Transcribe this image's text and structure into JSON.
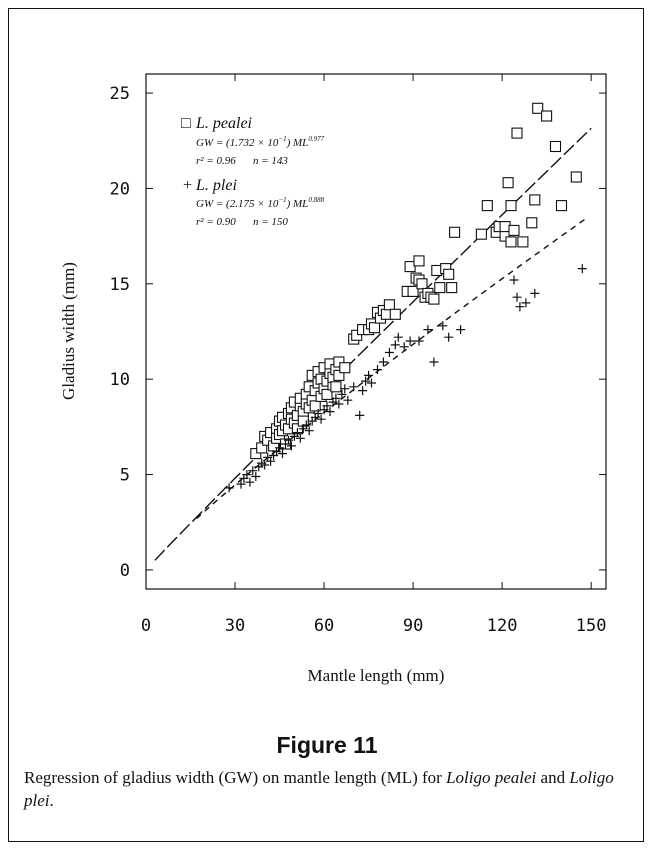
{
  "figure": {
    "title": "Figure 11",
    "caption_prefix": "Regression of gladius width (GW) on mantle length (ML) for ",
    "caption_species1": "Loligo pealei",
    "caption_and": " and ",
    "caption_species2": "Loligo plei",
    "caption_suffix": "."
  },
  "chart_data": {
    "type": "scatter",
    "xlabel": "Mantle length (mm)",
    "ylabel": "Gladius width (mm)",
    "xlim": [
      0,
      155
    ],
    "ylim": [
      -1,
      26
    ],
    "xticks": [
      0,
      30,
      60,
      90,
      120,
      150
    ],
    "yticks": [
      0,
      5,
      10,
      15,
      20,
      25
    ],
    "grid": false,
    "legend_position": "top-left",
    "series": [
      {
        "name": "L. pealei",
        "symbol": "square",
        "legend_symbol": "□",
        "equation_text": "GW = (1.732 × 10",
        "equation_exp1": "−1",
        "equation_mid": ") ML",
        "equation_exp2": "0.977",
        "r2_text": "r² = 0.96",
        "n_text": "n = 143",
        "fit": {
          "a": 0.1732,
          "b": 0.977,
          "x_range": [
            3,
            150
          ],
          "style": "long-dash"
        },
        "points": [
          [
            37,
            6.1
          ],
          [
            39,
            6.4
          ],
          [
            40,
            7.0
          ],
          [
            41,
            6.8
          ],
          [
            42,
            7.2
          ],
          [
            43,
            6.5
          ],
          [
            44,
            7.4
          ],
          [
            44,
            6.9
          ],
          [
            45,
            7.8
          ],
          [
            45,
            7.1
          ],
          [
            46,
            7.3
          ],
          [
            46,
            8.0
          ],
          [
            47,
            7.6
          ],
          [
            47,
            6.6
          ],
          [
            48,
            8.2
          ],
          [
            48,
            7.4
          ],
          [
            49,
            7.9
          ],
          [
            49,
            8.5
          ],
          [
            50,
            7.7
          ],
          [
            50,
            8.8
          ],
          [
            51,
            8.1
          ],
          [
            51,
            7.4
          ],
          [
            52,
            8.6
          ],
          [
            52,
            9.0
          ],
          [
            53,
            8.3
          ],
          [
            53,
            7.8
          ],
          [
            54,
            9.2
          ],
          [
            54,
            8.7
          ],
          [
            55,
            8.5
          ],
          [
            55,
            9.6
          ],
          [
            56,
            8.9
          ],
          [
            56,
            10.2
          ],
          [
            57,
            9.4
          ],
          [
            57,
            8.6
          ],
          [
            58,
            9.8
          ],
          [
            58,
            10.4
          ],
          [
            59,
            9.1
          ],
          [
            59,
            10.0
          ],
          [
            60,
            9.5
          ],
          [
            60,
            10.6
          ],
          [
            61,
            9.9
          ],
          [
            61,
            9.2
          ],
          [
            62,
            10.3
          ],
          [
            62,
            10.8
          ],
          [
            63,
            9.7
          ],
          [
            63,
            10.1
          ],
          [
            64,
            10.5
          ],
          [
            64,
            9.6
          ],
          [
            65,
            10.9
          ],
          [
            65,
            10.2
          ],
          [
            67,
            10.6
          ],
          [
            70,
            12.1
          ],
          [
            71,
            12.3
          ],
          [
            73,
            12.6
          ],
          [
            75,
            12.6
          ],
          [
            76,
            12.9
          ],
          [
            77,
            12.7
          ],
          [
            78,
            13.5
          ],
          [
            79,
            13.2
          ],
          [
            80,
            13.6
          ],
          [
            81,
            13.4
          ],
          [
            82,
            13.9
          ],
          [
            84,
            13.4
          ],
          [
            88,
            14.6
          ],
          [
            89,
            15.9
          ],
          [
            90,
            14.6
          ],
          [
            91,
            15.3
          ],
          [
            92,
            16.2
          ],
          [
            92,
            15.2
          ],
          [
            93,
            15.0
          ],
          [
            94,
            14.3
          ],
          [
            95,
            14.5
          ],
          [
            96,
            14.3
          ],
          [
            97,
            14.2
          ],
          [
            98,
            15.7
          ],
          [
            99,
            14.8
          ],
          [
            101,
            15.8
          ],
          [
            102,
            15.5
          ],
          [
            103,
            14.8
          ],
          [
            104,
            17.7
          ],
          [
            113,
            17.6
          ],
          [
            115,
            19.1
          ],
          [
            118,
            17.7
          ],
          [
            119,
            18.0
          ],
          [
            121,
            17.5
          ],
          [
            121,
            18.0
          ],
          [
            122,
            20.3
          ],
          [
            123,
            19.1
          ],
          [
            123,
            17.2
          ],
          [
            124,
            17.8
          ],
          [
            125,
            22.9
          ],
          [
            127,
            17.2
          ],
          [
            130,
            18.2
          ],
          [
            131,
            19.4
          ],
          [
            132,
            24.2
          ],
          [
            135,
            23.8
          ],
          [
            138,
            22.2
          ],
          [
            140,
            19.1
          ],
          [
            145,
            20.6
          ]
        ]
      },
      {
        "name": "L. plei",
        "symbol": "plus",
        "legend_symbol": "+",
        "equation_text": "GW = (2.175 × 10",
        "equation_exp1": "−1",
        "equation_mid": ") ML",
        "equation_exp2": "0.888",
        "r2_text": "r² = 0.90",
        "n_text": "n = 150",
        "fit": {
          "a": 0.2175,
          "b": 0.888,
          "x_range": [
            17,
            148
          ],
          "style": "short-dash"
        },
        "points": [
          [
            28,
            4.3
          ],
          [
            32,
            4.5
          ],
          [
            33,
            4.8
          ],
          [
            34,
            5.0
          ],
          [
            35,
            4.6
          ],
          [
            36,
            5.2
          ],
          [
            37,
            4.9
          ],
          [
            38,
            5.4
          ],
          [
            39,
            5.6
          ],
          [
            40,
            5.5
          ],
          [
            41,
            5.9
          ],
          [
            42,
            5.7
          ],
          [
            43,
            6.0
          ],
          [
            44,
            6.2
          ],
          [
            45,
            6.4
          ],
          [
            46,
            6.1
          ],
          [
            47,
            6.6
          ],
          [
            48,
            6.8
          ],
          [
            49,
            6.5
          ],
          [
            50,
            7.0
          ],
          [
            51,
            7.2
          ],
          [
            52,
            6.9
          ],
          [
            53,
            7.4
          ],
          [
            54,
            7.6
          ],
          [
            55,
            7.3
          ],
          [
            56,
            7.8
          ],
          [
            57,
            8.0
          ],
          [
            58,
            8.2
          ],
          [
            59,
            7.9
          ],
          [
            60,
            8.4
          ],
          [
            61,
            8.6
          ],
          [
            62,
            8.3
          ],
          [
            63,
            8.8
          ],
          [
            64,
            9.0
          ],
          [
            65,
            8.7
          ],
          [
            66,
            9.2
          ],
          [
            67,
            9.5
          ],
          [
            68,
            8.9
          ],
          [
            70,
            9.6
          ],
          [
            72,
            8.1
          ],
          [
            73,
            9.4
          ],
          [
            74,
            9.9
          ],
          [
            75,
            10.2
          ],
          [
            76,
            9.8
          ],
          [
            78,
            10.5
          ],
          [
            80,
            10.9
          ],
          [
            82,
            11.4
          ],
          [
            84,
            11.8
          ],
          [
            85,
            12.2
          ],
          [
            87,
            11.7
          ],
          [
            89,
            12.0
          ],
          [
            92,
            12.0
          ],
          [
            95,
            12.6
          ],
          [
            97,
            10.9
          ],
          [
            100,
            12.8
          ],
          [
            102,
            12.2
          ],
          [
            106,
            12.6
          ],
          [
            124,
            15.2
          ],
          [
            125,
            14.3
          ],
          [
            126,
            13.8
          ],
          [
            128,
            14.0
          ],
          [
            131,
            14.5
          ],
          [
            147,
            15.8
          ]
        ]
      }
    ]
  }
}
